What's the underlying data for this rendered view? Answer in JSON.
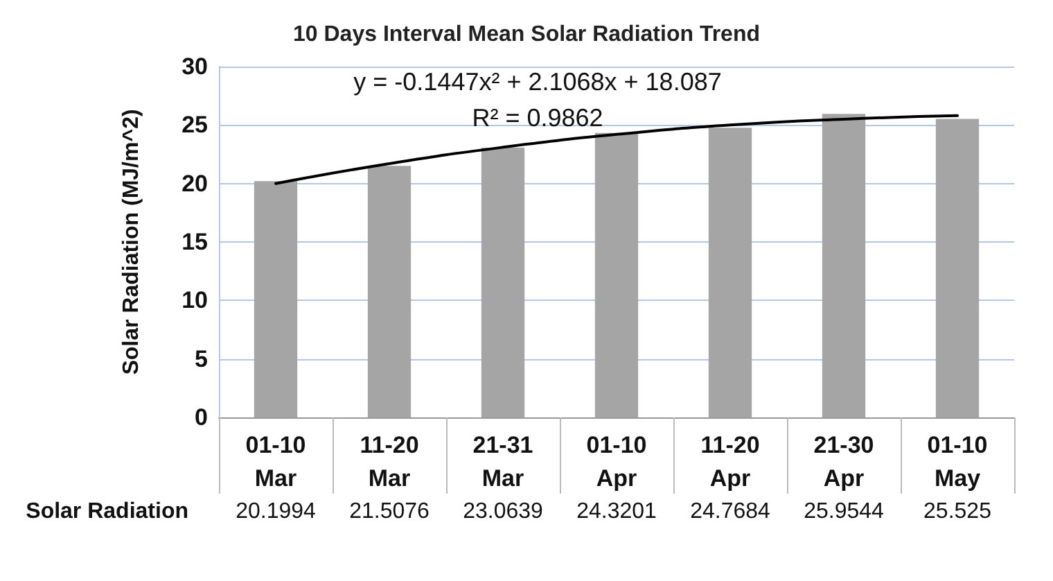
{
  "chart_data": {
    "type": "bar",
    "title": "10 Days Interval Mean Solar Radiation Trend",
    "ylabel": "Solar Radiation (MJ/m^2)",
    "categories": [
      "01-10\nMar",
      "11-20\nMar",
      "21-31\nMar",
      "01-10\nApr",
      "11-20\nApr",
      "21-30\nApr",
      "01-10\nMay"
    ],
    "series": [
      {
        "name": "Solar Radiation",
        "color": "#a5a5a5",
        "values": [
          20.1994,
          21.5076,
          23.0639,
          24.3201,
          24.7684,
          25.9544,
          25.525
        ],
        "value_labels": [
          "20.1994",
          "21.5076",
          "23.0639",
          "24.3201",
          "24.7684",
          "25.9544",
          "25.525"
        ]
      },
      {
        "type": "line",
        "color": "#000000",
        "values": [
          20.0,
          21.7,
          23.1,
          24.2,
          25.0,
          25.5,
          25.8
        ]
      }
    ],
    "ylim": [
      0,
      30
    ],
    "yticks": [
      0,
      5,
      10,
      15,
      20,
      25,
      30
    ],
    "grid": "y",
    "marker": "none",
    "line_style": "solid",
    "annotations": [
      "y = -0.1447x² + 2.1068x + 18.087",
      "R² = 0.9862"
    ]
  }
}
